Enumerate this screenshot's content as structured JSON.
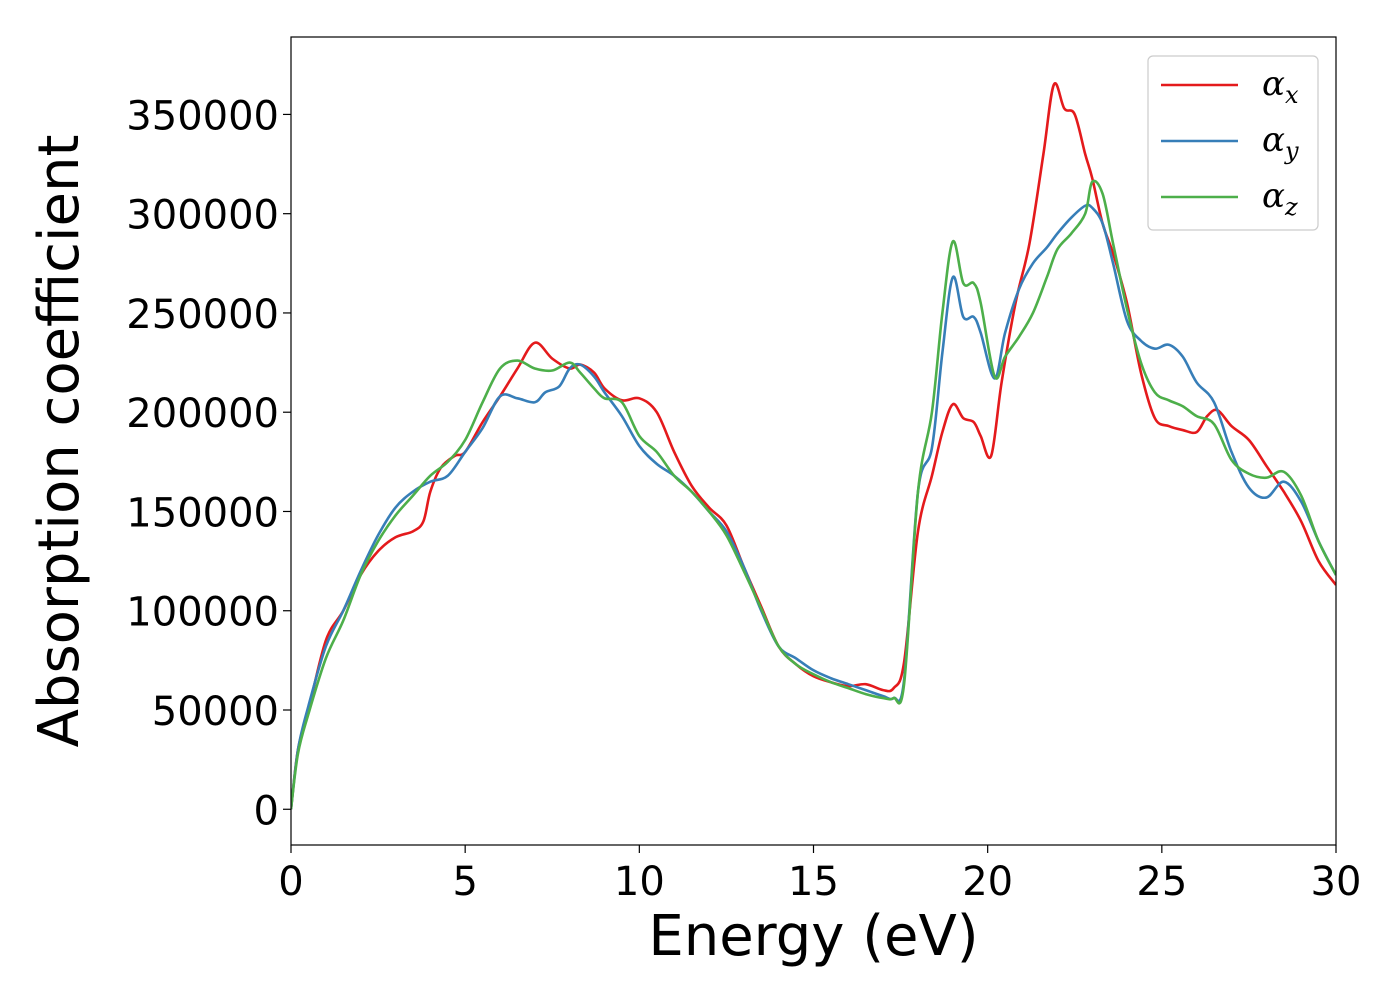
{
  "chart_data": {
    "type": "line",
    "title": "",
    "xlabel": "Energy (eV)",
    "ylabel": "Absorption coefficient",
    "xlim": [
      0,
      30
    ],
    "ylim": [
      -18000,
      389000
    ],
    "xticks": [
      0,
      5,
      10,
      15,
      20,
      25,
      30
    ],
    "yticks": [
      0,
      50000,
      100000,
      150000,
      200000,
      250000,
      300000,
      350000
    ],
    "grid": false,
    "legend_position": "top-right",
    "series": [
      {
        "name_base": "α",
        "name_sub": "x",
        "color": "#e41a1c",
        "x": [
          0,
          0.2,
          0.5,
          1.0,
          1.5,
          2.0,
          2.5,
          3.0,
          3.5,
          3.8,
          4.0,
          4.3,
          4.7,
          5.0,
          5.5,
          6.0,
          6.5,
          7.0,
          7.5,
          8.0,
          8.3,
          8.7,
          9.0,
          9.5,
          10.0,
          10.5,
          11.0,
          11.5,
          12.0,
          12.5,
          13.0,
          13.5,
          14.0,
          14.5,
          15.0,
          15.5,
          16.0,
          16.5,
          17.0,
          17.3,
          17.6,
          18.0,
          18.4,
          18.7,
          19.0,
          19.3,
          19.6,
          19.8,
          20.1,
          20.4,
          20.8,
          21.2,
          21.6,
          21.9,
          22.2,
          22.5,
          22.8,
          23.0,
          23.3,
          23.6,
          24.0,
          24.4,
          24.8,
          25.2,
          25.6,
          26.0,
          26.3,
          26.6,
          27.0,
          27.5,
          28.0,
          28.5,
          29.0,
          29.5,
          30.0
        ],
        "values": [
          0,
          30000,
          50000,
          85000,
          100000,
          118000,
          130000,
          137000,
          140000,
          145000,
          160000,
          172000,
          178000,
          180000,
          195000,
          208000,
          222000,
          235000,
          227000,
          222000,
          224000,
          220000,
          212000,
          206000,
          207000,
          200000,
          180000,
          163000,
          152000,
          143000,
          122000,
          102000,
          82000,
          73000,
          67000,
          64000,
          62000,
          63000,
          60000,
          61000,
          74000,
          140000,
          168000,
          190000,
          204000,
          197000,
          195000,
          188000,
          178000,
          215000,
          255000,
          285000,
          330000,
          365000,
          353000,
          350000,
          330000,
          318000,
          295000,
          280000,
          255000,
          220000,
          197000,
          193000,
          191000,
          190000,
          198000,
          201000,
          193000,
          186000,
          173000,
          160000,
          145000,
          125000,
          113000
        ]
      },
      {
        "name_base": "α",
        "name_sub": "y",
        "color": "#377eb8",
        "x": [
          0,
          0.2,
          0.5,
          1.0,
          1.5,
          2.0,
          2.5,
          3.0,
          3.5,
          4.0,
          4.5,
          5.0,
          5.5,
          6.0,
          6.5,
          7.0,
          7.3,
          7.7,
          8.0,
          8.3,
          8.7,
          9.0,
          9.5,
          10.0,
          10.5,
          11.0,
          11.5,
          12.0,
          12.5,
          13.0,
          13.5,
          14.0,
          14.5,
          15.0,
          15.5,
          16.0,
          16.5,
          17.0,
          17.3,
          17.6,
          18.0,
          18.4,
          18.7,
          19.0,
          19.3,
          19.6,
          19.8,
          20.2,
          20.5,
          20.9,
          21.3,
          21.7,
          22.0,
          22.4,
          22.8,
          23.0,
          23.3,
          23.6,
          24.0,
          24.4,
          24.8,
          25.2,
          25.6,
          26.0,
          26.5,
          27.0,
          27.5,
          28.0,
          28.5,
          29.0,
          29.5,
          30.0
        ],
        "values": [
          0,
          30000,
          52000,
          82000,
          100000,
          120000,
          138000,
          152000,
          160000,
          165000,
          168000,
          180000,
          192000,
          208000,
          207000,
          205000,
          210000,
          213000,
          222000,
          224000,
          218000,
          210000,
          198000,
          183000,
          174000,
          168000,
          160000,
          150000,
          140000,
          122000,
          100000,
          82000,
          76000,
          70000,
          66000,
          63000,
          60000,
          57000,
          56000,
          65000,
          160000,
          182000,
          230000,
          268000,
          248000,
          248000,
          240000,
          217000,
          240000,
          262000,
          275000,
          283000,
          290000,
          298000,
          304000,
          303000,
          295000,
          275000,
          246000,
          236000,
          232000,
          234000,
          228000,
          215000,
          205000,
          180000,
          162000,
          157000,
          165000,
          155000,
          135000,
          118000
        ]
      },
      {
        "name_base": "α",
        "name_sub": "z",
        "color": "#4daf4a",
        "x": [
          0,
          0.2,
          0.5,
          1.0,
          1.5,
          2.0,
          2.5,
          3.0,
          3.5,
          4.0,
          4.5,
          5.0,
          5.5,
          6.0,
          6.5,
          7.0,
          7.5,
          8.0,
          8.3,
          8.7,
          9.0,
          9.5,
          10.0,
          10.5,
          11.0,
          11.5,
          12.0,
          12.5,
          13.0,
          13.5,
          14.0,
          14.5,
          15.0,
          15.5,
          16.0,
          16.5,
          17.0,
          17.3,
          17.6,
          18.0,
          18.4,
          18.7,
          19.0,
          19.3,
          19.6,
          19.8,
          20.2,
          20.5,
          20.9,
          21.3,
          21.7,
          22.0,
          22.4,
          22.8,
          23.0,
          23.3,
          23.6,
          24.0,
          24.4,
          24.8,
          25.2,
          25.6,
          26.0,
          26.5,
          27.0,
          27.5,
          28.0,
          28.5,
          29.0,
          29.5,
          30.0
        ],
        "values": [
          0,
          28000,
          48000,
          76000,
          95000,
          118000,
          135000,
          148000,
          158000,
          168000,
          175000,
          186000,
          205000,
          222000,
          226000,
          222000,
          221000,
          225000,
          220000,
          212000,
          207000,
          205000,
          188000,
          180000,
          168000,
          160000,
          150000,
          138000,
          120000,
          101000,
          82000,
          73000,
          68000,
          64000,
          61000,
          58000,
          56000,
          56000,
          63000,
          160000,
          200000,
          250000,
          286000,
          265000,
          265000,
          255000,
          218000,
          228000,
          238000,
          250000,
          268000,
          282000,
          290000,
          300000,
          316000,
          310000,
          285000,
          252000,
          225000,
          210000,
          206000,
          203000,
          198000,
          194000,
          176000,
          169000,
          167000,
          170000,
          158000,
          135000,
          118000
        ]
      }
    ]
  }
}
